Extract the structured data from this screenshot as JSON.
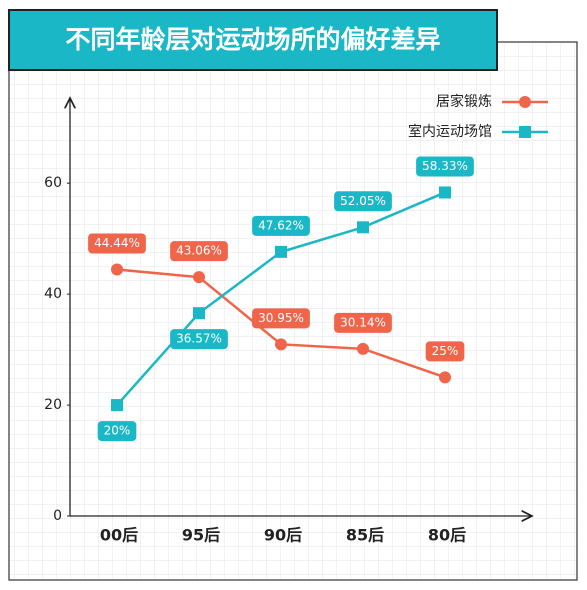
{
  "chart_data": {
    "type": "line",
    "title": "不同年龄层对运动场所的偏好差异",
    "categories": [
      "00后",
      "95后",
      "90后",
      "85后",
      "80后"
    ],
    "series": [
      {
        "name": "居家锻炼",
        "color": "#f0654a",
        "marker": "circle",
        "values": [
          44.44,
          43.06,
          30.95,
          30.14,
          25
        ],
        "value_labels": [
          "44.44%",
          "43.06%",
          "30.95%",
          "30.14%",
          "25%"
        ]
      },
      {
        "name": "室内运动场馆",
        "color": "#1ab8c6",
        "marker": "square",
        "values": [
          20,
          36.57,
          47.62,
          52.05,
          58.33
        ],
        "value_labels": [
          "20%",
          "36.57%",
          "47.62%",
          "52.05%",
          "58.33%"
        ]
      }
    ],
    "ylim": [
      0,
      75
    ],
    "yticks": [
      0,
      20,
      40,
      60
    ],
    "grid": false,
    "legend": "top-right"
  }
}
